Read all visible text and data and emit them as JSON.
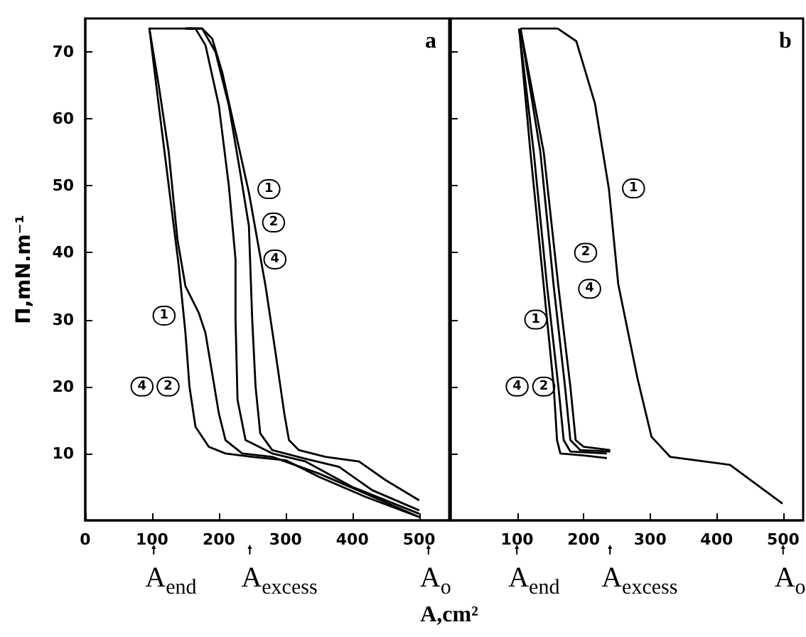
{
  "chart_data": [
    {
      "type": "line",
      "title": "a",
      "ylabel": "Π,mN.m⁻¹",
      "xlabel": "A,cm²",
      "xlim": [
        0,
        545
      ],
      "ylim": [
        0,
        75
      ],
      "xticks": [
        0,
        100,
        200,
        300,
        400,
        500
      ],
      "yticks": [
        10,
        20,
        30,
        40,
        50,
        60,
        70
      ],
      "series": [
        {
          "color": "#000000",
          "x": [
            500,
            450,
            410,
            360,
            320,
            305,
            298,
            285,
            270,
            245,
            225,
            205,
            190,
            175,
            150
          ],
          "values": [
            3,
            6,
            8.8,
            9.5,
            10.5,
            12,
            16,
            25,
            35,
            49,
            58,
            67,
            72,
            73.5,
            73.5
          ]
        },
        {
          "color": "#000000",
          "x": [
            500,
            430,
            380,
            330,
            280,
            262,
            255,
            250,
            245,
            232,
            215,
            195,
            175,
            150
          ],
          "values": [
            1.5,
            4.5,
            8,
            9.2,
            10.5,
            13,
            20,
            30,
            44,
            52,
            62,
            70,
            73.5,
            73.5
          ]
        },
        {
          "color": "#000000",
          "x": [
            500,
            400,
            330,
            280,
            240,
            228,
            225,
            225,
            215,
            200,
            180,
            165,
            150
          ],
          "values": [
            1,
            5,
            8.8,
            10,
            12,
            18,
            30,
            39,
            50,
            62,
            71,
            73.5,
            73.5
          ]
        },
        {
          "color": "#000000",
          "x": [
            175,
            96,
            110,
            125,
            138,
            150,
            170,
            180,
            190,
            200,
            210,
            235,
            280,
            350,
            420,
            500
          ],
          "values": [
            73.5,
            73.5,
            65,
            55,
            42,
            35,
            31,
            28,
            22,
            16,
            12,
            10,
            9.5,
            7,
            4,
            0.5
          ]
        },
        {
          "color": "#000000",
          "x": [
            96,
            110,
            125,
            140,
            150,
            156,
            165,
            185,
            210,
            250,
            300,
            350,
            420,
            500
          ],
          "values": [
            73.5,
            62,
            50,
            38,
            28,
            20,
            14,
            11,
            10,
            9.5,
            9,
            6.5,
            3.5,
            0.5
          ]
        }
      ],
      "annotations": [
        {
          "text": "1",
          "x": 275,
          "y": 49.5
        },
        {
          "text": "2",
          "x": 282,
          "y": 44.5
        },
        {
          "text": "4",
          "x": 284,
          "y": 39
        },
        {
          "text": "1",
          "x": 118,
          "y": 30.6
        },
        {
          "text": "4",
          "x": 85,
          "y": 20
        },
        {
          "text": "2",
          "x": 124,
          "y": 20
        },
        "A$_{end}$",
        "A$_{excess}$",
        "A$_{o}$"
      ]
    },
    {
      "type": "line",
      "title": "b",
      "xlim": [
        0,
        530
      ],
      "ylim": [
        0,
        75
      ],
      "xticks": [
        100,
        200,
        300,
        400,
        500
      ],
      "yticks": [
        10,
        20,
        30,
        40,
        50,
        60,
        70
      ],
      "tick_labels": "x",
      "series": [
        {
          "color": "#000000",
          "x": [
            499,
            420,
            330,
            302,
            281,
            252,
            238,
            217,
            189,
            161,
            105
          ],
          "values": [
            2.5,
            8.3,
            9.5,
            12.5,
            21.2,
            35.3,
            49.5,
            62.3,
            71.6,
            73.5,
            73.5
          ]
        },
        {
          "color": "#000000",
          "x": [
            103,
            120,
            140,
            155,
            160,
            165,
            200,
            235
          ],
          "values": [
            73.5,
            55,
            35,
            20,
            12,
            10,
            9.7,
            9.3
          ]
        },
        {
          "color": "#000000",
          "x": [
            103,
            125,
            145,
            162,
            170,
            180,
            235
          ],
          "values": [
            73.5,
            55,
            35,
            20,
            12,
            10.3,
            10
          ]
        },
        {
          "color": "#000000",
          "x": [
            105,
            135,
            155,
            172,
            180,
            195,
            240
          ],
          "values": [
            73.5,
            55,
            35,
            20,
            12,
            10.5,
            10.3
          ]
        },
        {
          "color": "#000000",
          "x": [
            105,
            140,
            162,
            180,
            188,
            200,
            240
          ],
          "values": [
            73.5,
            55,
            35,
            20,
            12,
            11,
            10.5
          ]
        }
      ],
      "annotations": [
        {
          "text": "1",
          "x": 275,
          "y": 49.6
        },
        {
          "text": "2",
          "x": 203,
          "y": 40
        },
        {
          "text": "4",
          "x": 209,
          "y": 34.6
        },
        {
          "text": "1",
          "x": 128,
          "y": 30
        },
        {
          "text": "4",
          "x": 100,
          "y": 20
        },
        {
          "text": "2",
          "x": 140,
          "y": 20
        },
        "A$_{end}$",
        "A$_{excess}$",
        "A$_{o}$"
      ]
    }
  ]
}
